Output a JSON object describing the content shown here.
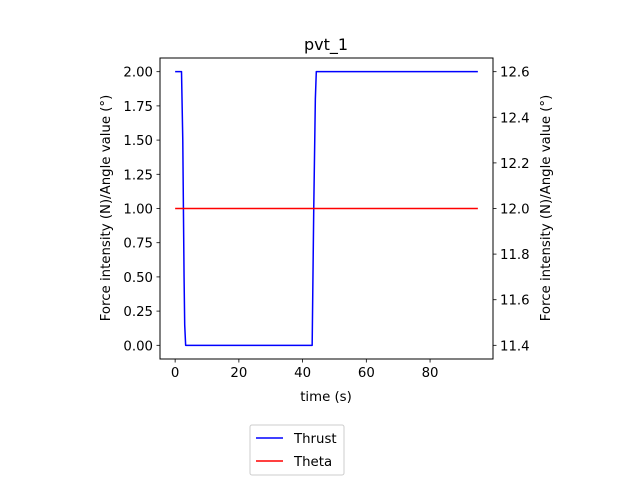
{
  "chart_data": {
    "type": "line",
    "title": "pvt_1",
    "xlabel": "time (s)",
    "ylabel_left": "Force intensity (N)/Angle value (°)",
    "ylabel_right": "Force intensity (N)/Angle value (°)",
    "xlim": [
      -4.75,
      99.75
    ],
    "ylim_left": [
      -0.1,
      2.1
    ],
    "ylim_right": [
      11.34,
      12.66
    ],
    "xticks": [
      0,
      20,
      40,
      60,
      80
    ],
    "yticks_left": [
      0.0,
      0.25,
      0.5,
      0.75,
      1.0,
      1.25,
      1.5,
      1.75,
      2.0
    ],
    "yticks_right": [
      11.4,
      11.6,
      11.8,
      12.0,
      12.2,
      12.4,
      12.6
    ],
    "legend_placement": "below axes, left of center",
    "grid": false,
    "series": [
      {
        "name": "Thrust",
        "axis": "left",
        "color": "#0000ff",
        "x": [
          0,
          2,
          2.4,
          2.8,
          3.0,
          3.3,
          43,
          43.5,
          44,
          44.3,
          95
        ],
        "y": [
          2.0,
          2.0,
          1.5,
          0.5,
          0.15,
          0.0,
          0.0,
          1.0,
          1.8,
          2.0,
          2.0
        ]
      },
      {
        "name": "Theta",
        "axis": "right",
        "color": "#ff0000",
        "x": [
          0,
          95
        ],
        "y": [
          12.0,
          12.0
        ]
      }
    ]
  }
}
